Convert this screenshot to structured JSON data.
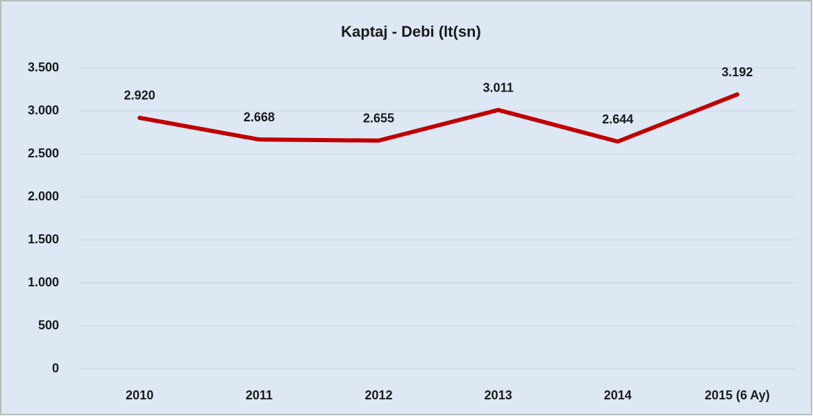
{
  "chart_data": {
    "type": "line",
    "title": "Kaptaj - Debi (lt(sn)",
    "categories": [
      "2010",
      "2011",
      "2012",
      "2013",
      "2014",
      "2015 (6 Ay)"
    ],
    "series": [
      {
        "name": "Kaptaj - Debi",
        "color": "#c00000",
        "values": [
          2920,
          2668,
          2655,
          3011,
          2644,
          3192
        ],
        "value_labels": [
          "2.920",
          "2.668",
          "2.655",
          "3.011",
          "2.644",
          "3.192"
        ]
      }
    ],
    "ylim": [
      0,
      3500
    ],
    "yticks": [
      0,
      500,
      {
        "value": 1000,
        "label": "1.000"
      },
      {
        "value": 1500,
        "label": "1.500"
      },
      {
        "value": 2000,
        "label": "2.000"
      },
      {
        "value": 2500,
        "label": "2.500"
      },
      {
        "value": 3000,
        "label": "3.000"
      },
      {
        "value": 3500,
        "label": "3.500"
      }
    ],
    "grid": true
  }
}
